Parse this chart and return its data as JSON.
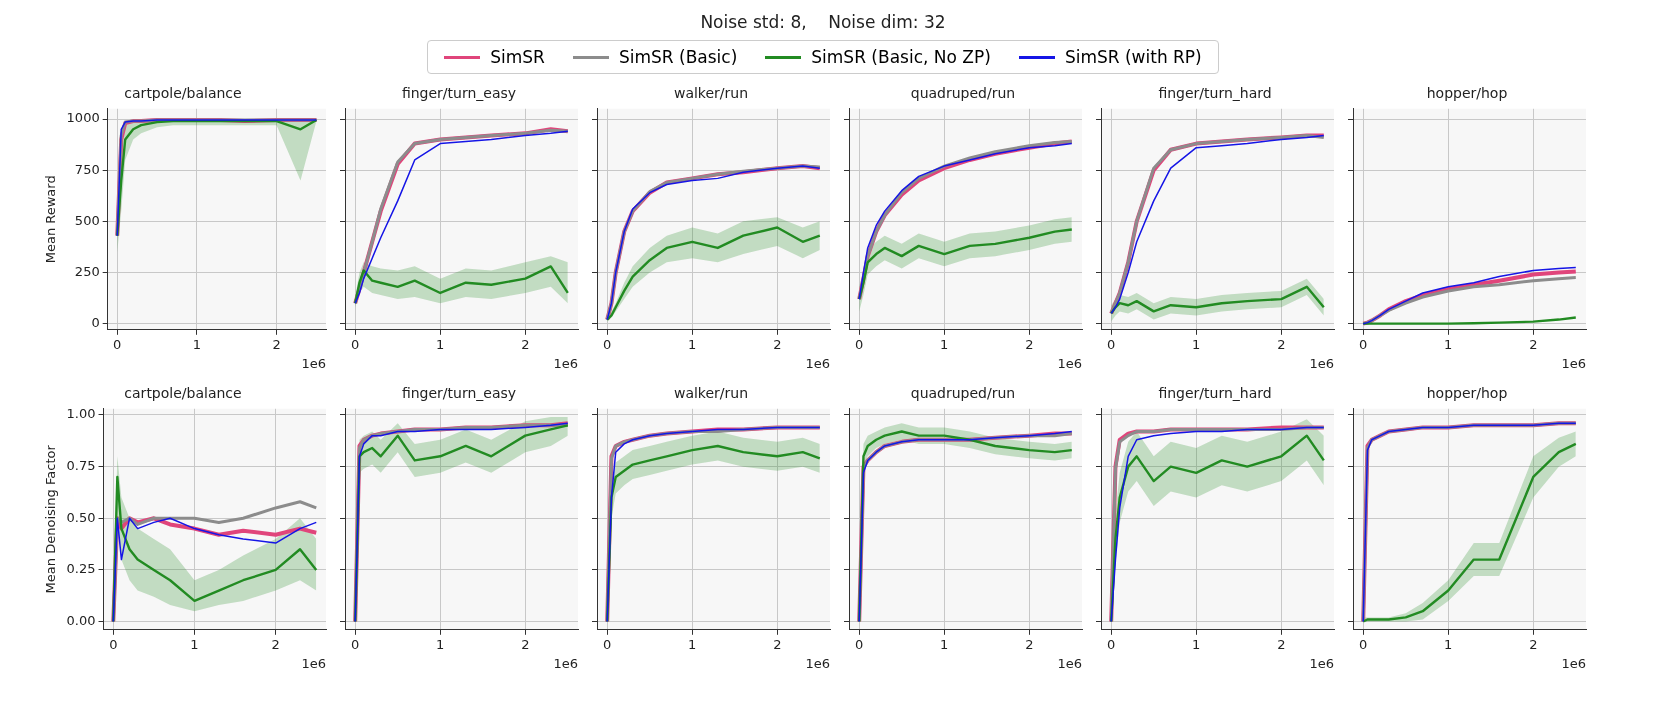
{
  "chart_data": [
    {
      "type": "other",
      "title": "Noise std: 8,    Noise dim: 32"
    },
    {
      "type": "line",
      "title": "cartpole/balance",
      "ylabel": "Mean Reward",
      "xlabel": "1e6",
      "legend": "top",
      "grid": true,
      "xlim": [
        -0.12,
        2.62
      ],
      "xticks": [
        0,
        1,
        2
      ],
      "ylim": [
        -30,
        1050
      ],
      "yticks": [
        0,
        250,
        500,
        750,
        1000
      ],
      "x": [
        0,
        0.05,
        0.1,
        0.2,
        0.3,
        0.5,
        0.7,
        1.0,
        1.3,
        1.6,
        2.0,
        2.3,
        2.5
      ],
      "series": [
        {
          "name": "SimSR",
          "color": "#e0457b",
          "values": [
            430,
            900,
            980,
            990,
            990,
            995,
            995,
            995,
            995,
            990,
            995,
            995,
            995
          ]
        },
        {
          "name": "SimSR (Basic)",
          "color": "#8c8c8c",
          "values": [
            430,
            920,
            985,
            990,
            990,
            995,
            995,
            995,
            995,
            995,
            995,
            995,
            995
          ]
        },
        {
          "name": "SimSR (Basic, No ZP)",
          "color": "#228b22",
          "values": [
            430,
            700,
            900,
            950,
            970,
            985,
            990,
            990,
            990,
            990,
            990,
            950,
            995
          ],
          "lower": [
            350,
            550,
            800,
            900,
            930,
            960,
            970,
            970,
            970,
            970,
            970,
            700,
            990
          ],
          "upper": [
            500,
            850,
            970,
            990,
            995,
            1000,
            1000,
            1000,
            1000,
            1000,
            1000,
            1000,
            1000
          ]
        },
        {
          "name": "SimSR (with RP)",
          "color": "#1515e6",
          "values": [
            430,
            950,
            985,
            990,
            990,
            995,
            995,
            995,
            995,
            995,
            995,
            995,
            995
          ]
        }
      ]
    },
    {
      "type": "line",
      "title": "finger/turn_easy",
      "xlabel": "1e6",
      "grid": true,
      "tick_labels": "x",
      "xlim": [
        -0.12,
        2.62
      ],
      "xticks": [
        0,
        1,
        2
      ],
      "ylim": [
        -30,
        1050
      ],
      "yticks": [
        0,
        250,
        500,
        750,
        1000
      ],
      "x": [
        0,
        0.05,
        0.1,
        0.2,
        0.3,
        0.5,
        0.7,
        1.0,
        1.3,
        1.6,
        2.0,
        2.3,
        2.5
      ],
      "series": [
        {
          "color": "#e0457b",
          "values": [
            100,
            170,
            250,
            400,
            550,
            780,
            880,
            900,
            910,
            920,
            930,
            950,
            940
          ]
        },
        {
          "color": "#8c8c8c",
          "values": [
            100,
            170,
            250,
            400,
            560,
            790,
            880,
            900,
            910,
            920,
            930,
            945,
            940
          ]
        },
        {
          "color": "#228b22",
          "values": [
            100,
            200,
            260,
            210,
            200,
            180,
            210,
            150,
            200,
            190,
            220,
            280,
            150
          ],
          "lower": [
            80,
            150,
            180,
            150,
            140,
            120,
            130,
            100,
            130,
            120,
            150,
            180,
            100
          ],
          "upper": [
            130,
            250,
            300,
            280,
            270,
            260,
            280,
            220,
            270,
            260,
            300,
            330,
            300
          ]
        },
        {
          "color": "#1515e6",
          "values": [
            100,
            150,
            220,
            320,
            420,
            600,
            800,
            880,
            890,
            900,
            920,
            930,
            940
          ]
        }
      ]
    },
    {
      "type": "line",
      "title": "walker/run",
      "xlabel": "1e6",
      "grid": true,
      "tick_labels": "x",
      "xlim": [
        -0.12,
        2.62
      ],
      "xticks": [
        0,
        1,
        2
      ],
      "ylim": [
        -30,
        1050
      ],
      "yticks": [
        0,
        250,
        500,
        750,
        1000
      ],
      "x": [
        0,
        0.05,
        0.1,
        0.2,
        0.3,
        0.5,
        0.7,
        1.0,
        1.3,
        1.6,
        2.0,
        2.3,
        2.5
      ],
      "series": [
        {
          "color": "#e0457b",
          "values": [
            20,
            100,
            250,
            450,
            550,
            640,
            690,
            710,
            730,
            740,
            760,
            770,
            760
          ]
        },
        {
          "color": "#8c8c8c",
          "values": [
            20,
            100,
            250,
            450,
            550,
            645,
            690,
            710,
            730,
            745,
            760,
            770,
            765
          ]
        },
        {
          "color": "#228b22",
          "values": [
            20,
            40,
            80,
            160,
            230,
            310,
            370,
            400,
            370,
            430,
            470,
            400,
            430
          ],
          "lower": [
            10,
            30,
            60,
            120,
            180,
            250,
            300,
            320,
            300,
            340,
            380,
            320,
            360
          ],
          "upper": [
            30,
            60,
            100,
            200,
            280,
            370,
            430,
            470,
            440,
            500,
            520,
            470,
            500
          ]
        },
        {
          "color": "#1515e6",
          "values": [
            20,
            100,
            250,
            450,
            560,
            640,
            680,
            700,
            710,
            740,
            760,
            770,
            760
          ]
        }
      ]
    },
    {
      "type": "line",
      "title": "quadruped/run",
      "xlabel": "1e6",
      "grid": true,
      "tick_labels": "x",
      "xlim": [
        -0.12,
        2.62
      ],
      "xticks": [
        0,
        1,
        2
      ],
      "ylim": [
        -30,
        1050
      ],
      "yticks": [
        0,
        250,
        500,
        750,
        1000
      ],
      "x": [
        0,
        0.05,
        0.1,
        0.2,
        0.3,
        0.5,
        0.7,
        1.0,
        1.3,
        1.6,
        2.0,
        2.3,
        2.5
      ],
      "series": [
        {
          "color": "#e0457b",
          "values": [
            120,
            220,
            330,
            450,
            530,
            630,
            700,
            760,
            800,
            830,
            860,
            880,
            890
          ]
        },
        {
          "color": "#8c8c8c",
          "values": [
            120,
            220,
            330,
            450,
            530,
            640,
            710,
            770,
            810,
            840,
            870,
            885,
            890
          ]
        },
        {
          "color": "#228b22",
          "values": [
            120,
            200,
            300,
            340,
            370,
            330,
            380,
            340,
            380,
            390,
            420,
            450,
            460
          ],
          "lower": [
            60,
            140,
            240,
            280,
            310,
            270,
            320,
            280,
            320,
            330,
            360,
            390,
            400
          ],
          "upper": [
            180,
            260,
            360,
            400,
            430,
            390,
            440,
            400,
            440,
            450,
            480,
            510,
            520
          ]
        },
        {
          "color": "#1515e6",
          "values": [
            120,
            250,
            370,
            480,
            550,
            650,
            720,
            770,
            800,
            830,
            860,
            870,
            880
          ]
        }
      ]
    },
    {
      "type": "line",
      "title": "finger/turn_hard",
      "xlabel": "1e6",
      "grid": true,
      "tick_labels": "x",
      "xlim": [
        -0.12,
        2.62
      ],
      "xticks": [
        0,
        1,
        2
      ],
      "ylim": [
        -30,
        1050
      ],
      "yticks": [
        0,
        250,
        500,
        750,
        1000
      ],
      "x": [
        0,
        0.05,
        0.1,
        0.2,
        0.3,
        0.5,
        0.7,
        1.0,
        1.3,
        1.6,
        2.0,
        2.3,
        2.5
      ],
      "series": [
        {
          "color": "#e0457b",
          "values": [
            50,
            100,
            150,
            300,
            500,
            750,
            850,
            880,
            890,
            900,
            910,
            920,
            920
          ]
        },
        {
          "color": "#8c8c8c",
          "values": [
            50,
            100,
            150,
            300,
            500,
            760,
            850,
            880,
            890,
            900,
            910,
            920,
            910
          ]
        },
        {
          "color": "#228b22",
          "values": [
            50,
            80,
            100,
            90,
            110,
            60,
            90,
            80,
            100,
            110,
            120,
            180,
            80
          ],
          "lower": [
            10,
            40,
            60,
            50,
            70,
            20,
            50,
            40,
            60,
            70,
            80,
            140,
            40
          ],
          "upper": [
            90,
            120,
            140,
            130,
            150,
            100,
            130,
            120,
            140,
            150,
            160,
            220,
            120
          ]
        },
        {
          "color": "#1515e6",
          "values": [
            50,
            80,
            120,
            250,
            400,
            600,
            760,
            860,
            870,
            880,
            900,
            910,
            920
          ]
        }
      ]
    },
    {
      "type": "line",
      "title": "hopper/hop",
      "xlabel": "1e6",
      "grid": true,
      "tick_labels": "x",
      "xlim": [
        -0.12,
        2.62
      ],
      "xticks": [
        0,
        1,
        2
      ],
      "ylim": [
        -30,
        1050
      ],
      "yticks": [
        0,
        250,
        500,
        750,
        1000
      ],
      "x": [
        0,
        0.05,
        0.1,
        0.2,
        0.3,
        0.5,
        0.7,
        1.0,
        1.3,
        1.6,
        2.0,
        2.3,
        2.5
      ],
      "series": [
        {
          "color": "#e0457b",
          "values": [
            0,
            5,
            15,
            40,
            70,
            110,
            140,
            170,
            190,
            210,
            240,
            250,
            255
          ]
        },
        {
          "color": "#8c8c8c",
          "values": [
            0,
            5,
            15,
            40,
            65,
            100,
            130,
            160,
            180,
            190,
            210,
            220,
            225
          ]
        },
        {
          "color": "#228b22",
          "values": [
            0,
            0,
            0,
            0,
            0,
            0,
            0,
            0,
            2,
            5,
            10,
            20,
            30
          ]
        },
        {
          "color": "#1515e6",
          "values": [
            0,
            5,
            15,
            40,
            70,
            110,
            150,
            180,
            200,
            230,
            260,
            270,
            275
          ]
        }
      ]
    },
    {
      "type": "line",
      "title": "cartpole/balance",
      "ylabel": "Mean Denoising Factor",
      "xlabel": "1e6",
      "grid": true,
      "xlim": [
        -0.12,
        2.62
      ],
      "xticks": [
        0,
        1,
        2
      ],
      "ylim": [
        -0.04,
        1.03
      ],
      "yticks": [
        {
          "value": 0,
          "label": "0.00"
        },
        {
          "value": 0.25,
          "label": "0.25"
        },
        {
          "value": 0.5,
          "label": "0.50"
        },
        {
          "value": 0.75,
          "label": "0.75"
        },
        {
          "value": 1,
          "label": "1.00"
        }
      ],
      "x": [
        0,
        0.05,
        0.1,
        0.2,
        0.3,
        0.5,
        0.7,
        1.0,
        1.3,
        1.6,
        2.0,
        2.3,
        2.5
      ],
      "series": [
        {
          "color": "#e0457b",
          "values": [
            0,
            0.5,
            0.45,
            0.5,
            0.48,
            0.5,
            0.47,
            0.45,
            0.42,
            0.44,
            0.42,
            0.45,
            0.43
          ]
        },
        {
          "color": "#8c8c8c",
          "values": [
            0,
            0.5,
            0.48,
            0.5,
            0.47,
            0.5,
            0.5,
            0.5,
            0.48,
            0.5,
            0.55,
            0.58,
            0.55
          ]
        },
        {
          "color": "#228b22",
          "values": [
            0,
            0.7,
            0.45,
            0.35,
            0.3,
            0.25,
            0.2,
            0.1,
            0.15,
            0.2,
            0.25,
            0.35,
            0.25
          ],
          "lower": [
            0,
            0.5,
            0.3,
            0.2,
            0.15,
            0.12,
            0.08,
            0.05,
            0.08,
            0.1,
            0.15,
            0.2,
            0.15
          ],
          "upper": [
            0.1,
            0.8,
            0.6,
            0.5,
            0.45,
            0.4,
            0.35,
            0.2,
            0.25,
            0.32,
            0.4,
            0.5,
            0.4
          ]
        },
        {
          "color": "#1515e6",
          "values": [
            0,
            0.5,
            0.3,
            0.5,
            0.45,
            0.48,
            0.5,
            0.45,
            0.42,
            0.4,
            0.38,
            0.45,
            0.48
          ]
        }
      ]
    },
    {
      "type": "line",
      "title": "finger/turn_easy",
      "xlabel": "1e6",
      "grid": true,
      "tick_labels": "x",
      "xlim": [
        -0.12,
        2.62
      ],
      "xticks": [
        0,
        1,
        2
      ],
      "ylim": [
        -0.04,
        1.03
      ],
      "yticks": [
        0,
        0.25,
        0.5,
        0.75,
        1
      ],
      "x": [
        0,
        0.05,
        0.1,
        0.2,
        0.3,
        0.5,
        0.7,
        1.0,
        1.3,
        1.6,
        2.0,
        2.3,
        2.5
      ],
      "series": [
        {
          "color": "#e0457b",
          "values": [
            0,
            0.85,
            0.88,
            0.9,
            0.91,
            0.92,
            0.93,
            0.93,
            0.94,
            0.94,
            0.95,
            0.95,
            0.96
          ]
        },
        {
          "color": "#8c8c8c",
          "values": [
            0,
            0.84,
            0.88,
            0.9,
            0.91,
            0.92,
            0.93,
            0.93,
            0.94,
            0.94,
            0.95,
            0.95,
            0.95
          ]
        },
        {
          "color": "#228b22",
          "values": [
            0,
            0.8,
            0.82,
            0.84,
            0.8,
            0.9,
            0.78,
            0.8,
            0.85,
            0.8,
            0.9,
            0.93,
            0.95
          ],
          "lower": [
            0,
            0.72,
            0.74,
            0.76,
            0.72,
            0.82,
            0.7,
            0.72,
            0.77,
            0.72,
            0.82,
            0.85,
            0.9
          ],
          "upper": [
            0.05,
            0.88,
            0.9,
            0.92,
            0.88,
            0.96,
            0.86,
            0.88,
            0.93,
            0.88,
            0.97,
            0.99,
            0.99
          ]
        },
        {
          "color": "#1515e6",
          "values": [
            0,
            0.8,
            0.86,
            0.9,
            0.9,
            0.92,
            0.92,
            0.93,
            0.93,
            0.93,
            0.94,
            0.95,
            0.96
          ]
        }
      ]
    },
    {
      "type": "line",
      "title": "walker/run",
      "xlabel": "1e6",
      "grid": true,
      "tick_labels": "x",
      "xlim": [
        -0.12,
        2.62
      ],
      "xticks": [
        0,
        1,
        2
      ],
      "ylim": [
        -0.04,
        1.03
      ],
      "yticks": [
        0,
        0.25,
        0.5,
        0.75,
        1
      ],
      "x": [
        0,
        0.05,
        0.1,
        0.2,
        0.3,
        0.5,
        0.7,
        1.0,
        1.3,
        1.6,
        2.0,
        2.3,
        2.5
      ],
      "series": [
        {
          "color": "#e0457b",
          "values": [
            0,
            0.8,
            0.85,
            0.87,
            0.88,
            0.9,
            0.91,
            0.92,
            0.93,
            0.93,
            0.94,
            0.94,
            0.94
          ]
        },
        {
          "color": "#8c8c8c",
          "values": [
            0,
            0.79,
            0.85,
            0.87,
            0.88,
            0.9,
            0.91,
            0.92,
            0.92,
            0.93,
            0.94,
            0.94,
            0.94
          ]
        },
        {
          "color": "#228b22",
          "values": [
            0,
            0.6,
            0.7,
            0.73,
            0.76,
            0.78,
            0.8,
            0.83,
            0.85,
            0.82,
            0.8,
            0.82,
            0.79
          ],
          "lower": [
            0,
            0.5,
            0.62,
            0.66,
            0.69,
            0.71,
            0.73,
            0.76,
            0.78,
            0.75,
            0.73,
            0.75,
            0.72
          ],
          "upper": [
            0.05,
            0.68,
            0.77,
            0.8,
            0.83,
            0.85,
            0.87,
            0.9,
            0.92,
            0.89,
            0.87,
            0.89,
            0.86
          ]
        },
        {
          "color": "#1515e6",
          "values": [
            0,
            0.6,
            0.82,
            0.86,
            0.88,
            0.9,
            0.91,
            0.92,
            0.93,
            0.93,
            0.94,
            0.94,
            0.94
          ]
        }
      ]
    },
    {
      "type": "line",
      "title": "quadruped/run",
      "xlabel": "1e6",
      "grid": true,
      "tick_labels": "x",
      "xlim": [
        -0.12,
        2.62
      ],
      "xticks": [
        0,
        1,
        2
      ],
      "ylim": [
        -0.04,
        1.03
      ],
      "yticks": [
        0,
        0.25,
        0.5,
        0.75,
        1
      ],
      "x": [
        0,
        0.05,
        0.1,
        0.2,
        0.3,
        0.5,
        0.7,
        1.0,
        1.3,
        1.6,
        2.0,
        2.3,
        2.5
      ],
      "series": [
        {
          "color": "#e0457b",
          "values": [
            0,
            0.75,
            0.78,
            0.82,
            0.85,
            0.87,
            0.88,
            0.88,
            0.88,
            0.89,
            0.9,
            0.91,
            0.91
          ]
        },
        {
          "color": "#8c8c8c",
          "values": [
            0,
            0.74,
            0.78,
            0.82,
            0.85,
            0.87,
            0.88,
            0.88,
            0.88,
            0.89,
            0.9,
            0.9,
            0.91
          ]
        },
        {
          "color": "#228b22",
          "values": [
            0,
            0.8,
            0.85,
            0.88,
            0.9,
            0.92,
            0.9,
            0.9,
            0.88,
            0.85,
            0.83,
            0.82,
            0.83
          ],
          "lower": [
            0,
            0.74,
            0.8,
            0.84,
            0.86,
            0.88,
            0.86,
            0.86,
            0.84,
            0.81,
            0.79,
            0.78,
            0.79
          ],
          "upper": [
            0.05,
            0.86,
            0.9,
            0.92,
            0.94,
            0.96,
            0.94,
            0.94,
            0.92,
            0.89,
            0.87,
            0.86,
            0.87
          ]
        },
        {
          "color": "#1515e6",
          "values": [
            0,
            0.72,
            0.78,
            0.82,
            0.85,
            0.87,
            0.88,
            0.88,
            0.88,
            0.89,
            0.9,
            0.91,
            0.92
          ]
        }
      ]
    },
    {
      "type": "line",
      "title": "finger/turn_hard",
      "xlabel": "1e6",
      "grid": true,
      "tick_labels": "x",
      "xlim": [
        -0.12,
        2.62
      ],
      "xticks": [
        0,
        1,
        2
      ],
      "ylim": [
        -0.04,
        1.03
      ],
      "yticks": [
        0,
        0.25,
        0.5,
        0.75,
        1
      ],
      "x": [
        0,
        0.05,
        0.1,
        0.2,
        0.3,
        0.5,
        0.7,
        1.0,
        1.3,
        1.6,
        2.0,
        2.3,
        2.5
      ],
      "series": [
        {
          "color": "#e0457b",
          "values": [
            0,
            0.75,
            0.88,
            0.91,
            0.92,
            0.92,
            0.93,
            0.93,
            0.93,
            0.93,
            0.94,
            0.94,
            0.94
          ]
        },
        {
          "color": "#8c8c8c",
          "values": [
            0,
            0.74,
            0.87,
            0.9,
            0.92,
            0.92,
            0.93,
            0.93,
            0.93,
            0.93,
            0.93,
            0.94,
            0.94
          ]
        },
        {
          "color": "#228b22",
          "values": [
            0,
            0.4,
            0.6,
            0.75,
            0.8,
            0.68,
            0.75,
            0.72,
            0.78,
            0.75,
            0.8,
            0.9,
            0.78
          ],
          "lower": [
            0,
            0.28,
            0.48,
            0.63,
            0.68,
            0.56,
            0.63,
            0.6,
            0.66,
            0.63,
            0.68,
            0.78,
            0.66
          ],
          "upper": [
            0.05,
            0.52,
            0.72,
            0.87,
            0.92,
            0.8,
            0.87,
            0.84,
            0.9,
            0.87,
            0.92,
            0.98,
            0.9
          ]
        },
        {
          "color": "#1515e6",
          "values": [
            0,
            0.3,
            0.55,
            0.8,
            0.88,
            0.9,
            0.91,
            0.92,
            0.92,
            0.93,
            0.93,
            0.94,
            0.94
          ]
        }
      ]
    },
    {
      "type": "line",
      "title": "hopper/hop",
      "xlabel": "1e6",
      "grid": true,
      "tick_labels": "x",
      "xlim": [
        -0.12,
        2.62
      ],
      "xticks": [
        0,
        1,
        2
      ],
      "ylim": [
        -0.04,
        1.03
      ],
      "yticks": [
        0,
        0.25,
        0.5,
        0.75,
        1
      ],
      "x": [
        0,
        0.05,
        0.1,
        0.2,
        0.3,
        0.5,
        0.7,
        1.0,
        1.3,
        1.6,
        2.0,
        2.3,
        2.5
      ],
      "series": [
        {
          "color": "#e0457b",
          "values": [
            0,
            0.85,
            0.88,
            0.9,
            0.92,
            0.93,
            0.94,
            0.94,
            0.95,
            0.95,
            0.95,
            0.96,
            0.96
          ]
        },
        {
          "color": "#8c8c8c",
          "values": [
            0,
            0.84,
            0.88,
            0.9,
            0.92,
            0.93,
            0.94,
            0.94,
            0.95,
            0.95,
            0.95,
            0.96,
            0.96
          ]
        },
        {
          "color": "#228b22",
          "values": [
            0,
            0.01,
            0.01,
            0.01,
            0.01,
            0.02,
            0.05,
            0.15,
            0.3,
            0.3,
            0.7,
            0.82,
            0.86
          ],
          "lower": [
            0,
            0,
            0,
            0,
            0,
            0,
            0.01,
            0.1,
            0.22,
            0.22,
            0.6,
            0.75,
            0.8
          ],
          "upper": [
            0.02,
            0.02,
            0.02,
            0.02,
            0.02,
            0.04,
            0.09,
            0.2,
            0.38,
            0.38,
            0.8,
            0.89,
            0.92
          ]
        },
        {
          "color": "#1515e6",
          "values": [
            0,
            0.83,
            0.88,
            0.9,
            0.92,
            0.93,
            0.94,
            0.94,
            0.95,
            0.95,
            0.95,
            0.96,
            0.96
          ]
        }
      ]
    }
  ]
}
